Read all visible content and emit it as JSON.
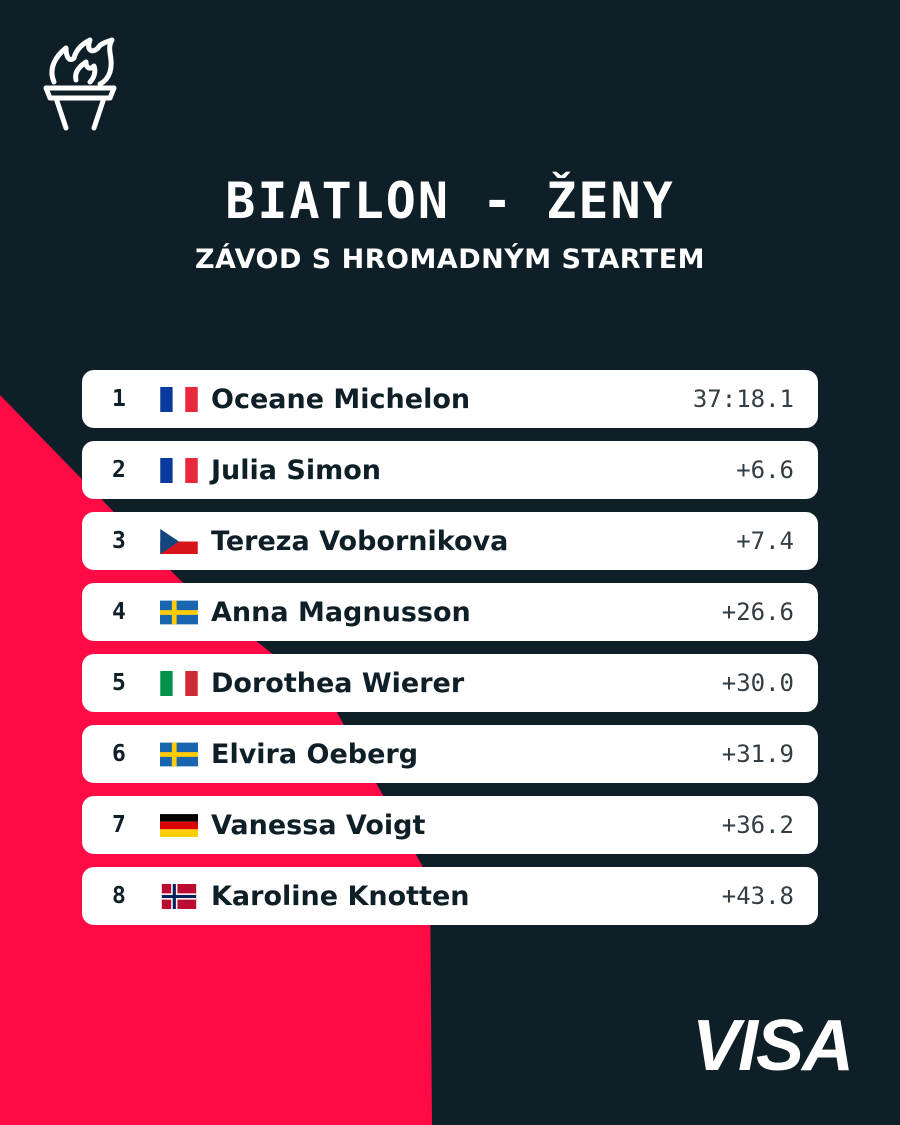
{
  "header": {
    "title": "BIATLON - ŽENY",
    "subtitle": "ZÁVOD S HROMADNÝM STARTEM"
  },
  "logo": {
    "icon": "torch-icon"
  },
  "results": [
    {
      "rank": "1",
      "country": "FRA",
      "flag_icon": "france-flag-icon",
      "name": "Oceane Michelon",
      "time": "37:18.1"
    },
    {
      "rank": "2",
      "country": "FRA",
      "flag_icon": "france-flag-icon",
      "name": "Julia Simon",
      "time": "+6.6"
    },
    {
      "rank": "3",
      "country": "CZE",
      "flag_icon": "czech-flag-icon",
      "name": "Tereza Vobornikova",
      "time": "+7.4"
    },
    {
      "rank": "4",
      "country": "SWE",
      "flag_icon": "sweden-flag-icon",
      "name": "Anna Magnusson",
      "time": "+26.6"
    },
    {
      "rank": "5",
      "country": "ITA",
      "flag_icon": "italy-flag-icon",
      "name": "Dorothea Wierer",
      "time": "+30.0"
    },
    {
      "rank": "6",
      "country": "SWE",
      "flag_icon": "sweden-flag-icon",
      "name": "Elvira Oeberg",
      "time": "+31.9"
    },
    {
      "rank": "7",
      "country": "GER",
      "flag_icon": "germany-flag-icon",
      "name": "Vanessa Voigt",
      "time": "+36.2"
    },
    {
      "rank": "8",
      "country": "NOR",
      "flag_icon": "norway-flag-icon",
      "name": "Karoline Knotten",
      "time": "+43.8"
    }
  ],
  "sponsor": {
    "label": "VISA"
  },
  "colors": {
    "background": "#0f1f28",
    "accent": "#ff0a45",
    "row": "#ffffff",
    "text": "#0f1f28"
  }
}
